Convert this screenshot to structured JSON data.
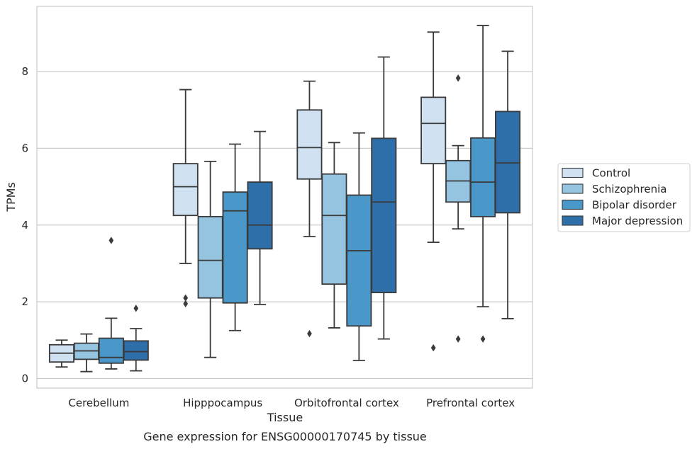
{
  "chart_data": {
    "type": "box",
    "caption": "Gene expression for ENSG00000170745 by tissue",
    "xlabel": "Tissue",
    "ylabel": "TPMs",
    "ylim": [
      -0.25,
      9.7
    ],
    "yticks": [
      0,
      2,
      4,
      6,
      8
    ],
    "grid": true,
    "legend_placement": "right",
    "categories": [
      "Cerebellum",
      "Hipppocampus",
      "Orbitofrontal cortex",
      "Prefrontal cortex"
    ],
    "series": [
      {
        "name": "Control",
        "color": "#d0e1f2",
        "boxes": [
          {
            "whislo": 0.3,
            "q1": 0.43,
            "med": 0.66,
            "q3": 0.88,
            "whishi": 1.0,
            "fliers": []
          },
          {
            "whislo": 3.0,
            "q1": 4.25,
            "med": 5.0,
            "q3": 5.6,
            "whishi": 7.53,
            "fliers": [
              2.1,
              1.95
            ]
          },
          {
            "whislo": 3.7,
            "q1": 5.2,
            "med": 6.02,
            "q3": 7.0,
            "whishi": 7.75,
            "fliers": [
              1.17
            ]
          },
          {
            "whislo": 3.55,
            "q1": 5.6,
            "med": 6.65,
            "q3": 7.33,
            "whishi": 9.03,
            "fliers": [
              0.8
            ]
          }
        ]
      },
      {
        "name": "Schizophrenia",
        "color": "#94c4df",
        "boxes": [
          {
            "whislo": 0.18,
            "q1": 0.5,
            "med": 0.72,
            "q3": 0.92,
            "whishi": 1.16,
            "fliers": []
          },
          {
            "whislo": 0.55,
            "q1": 2.1,
            "med": 3.08,
            "q3": 4.22,
            "whishi": 5.66,
            "fliers": []
          },
          {
            "whislo": 1.32,
            "q1": 2.46,
            "med": 4.25,
            "q3": 5.33,
            "whishi": 6.15,
            "fliers": []
          },
          {
            "whislo": 3.9,
            "q1": 4.6,
            "med": 5.15,
            "q3": 5.68,
            "whishi": 6.07,
            "fliers": [
              7.83,
              1.03
            ]
          }
        ]
      },
      {
        "name": "Bipolar disorder",
        "color": "#4a98c9",
        "boxes": [
          {
            "whislo": 0.25,
            "q1": 0.4,
            "med": 0.55,
            "q3": 1.05,
            "whishi": 1.57,
            "fliers": [
              3.6
            ]
          },
          {
            "whislo": 1.25,
            "q1": 1.97,
            "med": 4.37,
            "q3": 4.86,
            "whishi": 6.11,
            "fliers": []
          },
          {
            "whislo": 0.47,
            "q1": 1.37,
            "med": 3.33,
            "q3": 4.78,
            "whishi": 6.4,
            "fliers": []
          },
          {
            "whislo": 1.87,
            "q1": 4.22,
            "med": 5.12,
            "q3": 6.27,
            "whishi": 9.2,
            "fliers": [
              1.03
            ]
          }
        ]
      },
      {
        "name": "Major depression",
        "color": "#2e6fa9",
        "boxes": [
          {
            "whislo": 0.2,
            "q1": 0.48,
            "med": 0.7,
            "q3": 0.98,
            "whishi": 1.3,
            "fliers": [
              1.83
            ]
          },
          {
            "whislo": 1.93,
            "q1": 3.38,
            "med": 4.0,
            "q3": 5.12,
            "whishi": 6.44,
            "fliers": []
          },
          {
            "whislo": 1.03,
            "q1": 2.24,
            "med": 4.6,
            "q3": 6.26,
            "whishi": 8.38,
            "fliers": []
          },
          {
            "whislo": 1.56,
            "q1": 4.32,
            "med": 5.62,
            "q3": 6.96,
            "whishi": 8.53,
            "fliers": []
          }
        ]
      }
    ]
  }
}
